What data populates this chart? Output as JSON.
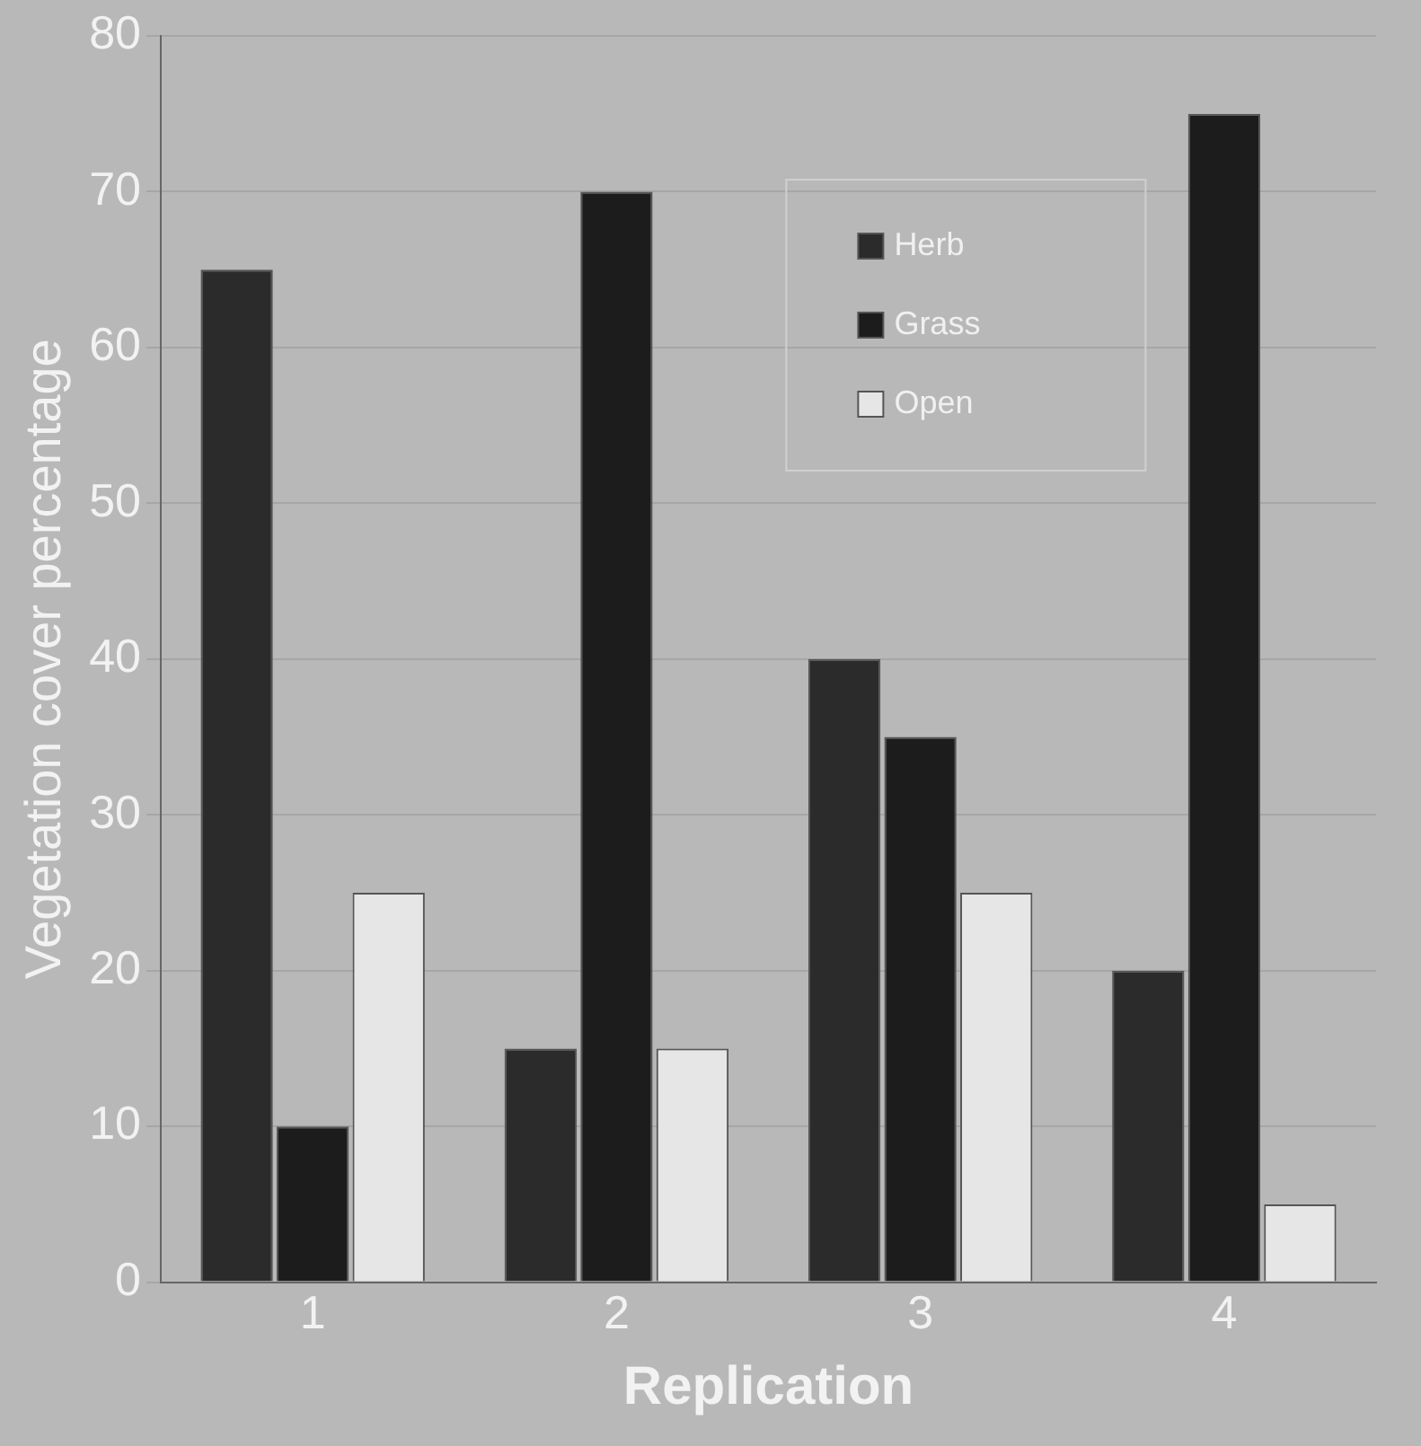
{
  "chart_data": {
    "type": "bar",
    "xlabel": "Replication",
    "ylabel": "Vegetation cover percentage",
    "categories": [
      "1",
      "2",
      "3",
      "4"
    ],
    "series": [
      {
        "name": "Herb",
        "color": "#2b2b2b",
        "values": [
          65,
          15,
          40,
          20
        ]
      },
      {
        "name": "Grass",
        "color": "#1c1c1c",
        "values": [
          10,
          70,
          35,
          75
        ]
      },
      {
        "name": "Open",
        "color": "#e6e6e6",
        "values": [
          25,
          15,
          25,
          5
        ]
      }
    ],
    "ylim": [
      0,
      80
    ],
    "yticks": [
      0,
      10,
      20,
      30,
      40,
      50,
      60,
      70,
      80
    ],
    "grid": "y",
    "legend": "top right"
  }
}
